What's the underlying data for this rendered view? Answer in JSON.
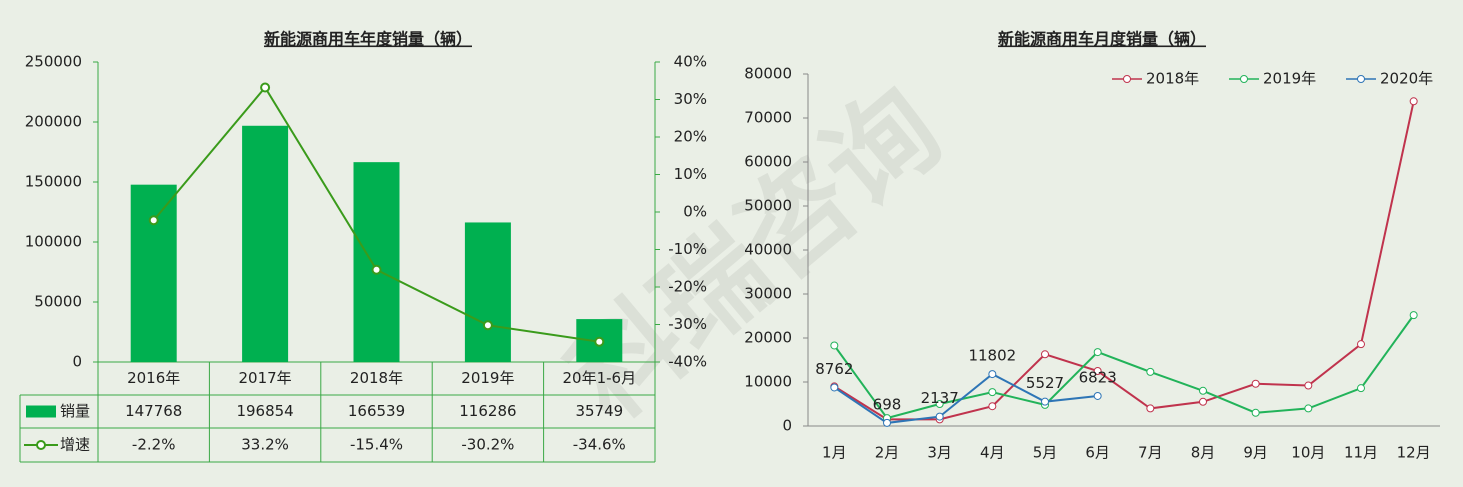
{
  "watermark": "科瑞咨询",
  "chart_data": [
    {
      "type": "combo",
      "title": "新能源商用车年度销量（辆）",
      "categories": [
        "2016年",
        "2017年",
        "2018年",
        "2019年",
        "20年1-6月"
      ],
      "series": [
        {
          "name": "销量",
          "type": "bar",
          "color": "#00b050",
          "values": [
            147768,
            196854,
            166539,
            116286,
            35749
          ]
        },
        {
          "name": "增速",
          "type": "line",
          "axis": "y2",
          "color": "#3a9b1b",
          "values": [
            -2.2,
            33.2,
            -15.4,
            -30.2,
            -34.6
          ],
          "value_labels": [
            "-2.2%",
            "33.2%",
            "-15.4%",
            "-30.2%",
            "-34.6%"
          ]
        }
      ],
      "ylim": [
        0,
        250000
      ],
      "yticks": [
        0,
        50000,
        100000,
        150000,
        200000,
        250000
      ],
      "y2lim": [
        -40,
        40
      ],
      "y2ticks": [
        {
          "value": -40,
          "label": "-40%"
        },
        {
          "value": -30,
          "label": "-30%"
        },
        {
          "value": -20,
          "label": "-20%"
        },
        {
          "value": -10,
          "label": "-10%"
        },
        {
          "value": 0,
          "label": "0%"
        },
        {
          "value": 10,
          "label": "10%"
        },
        {
          "value": 20,
          "label": "20%"
        },
        {
          "value": 30,
          "label": "30%"
        },
        {
          "value": 40,
          "label": "40%"
        }
      ],
      "data_table": true
    },
    {
      "type": "line",
      "title": "新能源商用车月度销量（辆）",
      "categories": [
        "1月",
        "2月",
        "3月",
        "4月",
        "5月",
        "6月",
        "7月",
        "8月",
        "9月",
        "10月",
        "11月",
        "12月"
      ],
      "series": [
        {
          "name": "2018年",
          "color": "#c0334d",
          "values": [
            9000,
            1500,
            1500,
            4500,
            16300,
            12500,
            4000,
            5500,
            9600,
            9200,
            18600,
            73800
          ]
        },
        {
          "name": "2019年",
          "color": "#22b35a",
          "values": [
            18300,
            1800,
            5000,
            7700,
            4800,
            16800,
            12300,
            8000,
            3000,
            4000,
            8600,
            25200
          ]
        },
        {
          "name": "2020年",
          "color": "#2e75b6",
          "values": [
            8762,
            698,
            2137,
            11802,
            5527,
            6823,
            null,
            null,
            null,
            null,
            null,
            null
          ],
          "data_labels": true
        }
      ],
      "ylim": [
        0,
        80000
      ],
      "yticks": [
        0,
        10000,
        20000,
        30000,
        40000,
        50000,
        60000,
        70000,
        80000
      ],
      "legend": "top-right"
    }
  ]
}
